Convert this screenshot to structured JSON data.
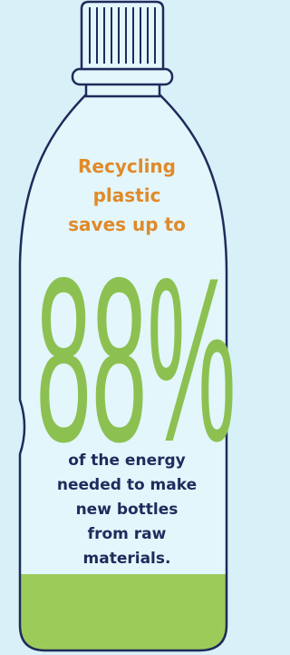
{
  "lead": {
    "lines": [
      "Recycling",
      "plastic",
      "saves up to"
    ]
  },
  "figure": {
    "text": "88%"
  },
  "body": {
    "lines": [
      "of the energy",
      "needed to make",
      "new bottles",
      "from raw",
      "materials."
    ]
  }
}
